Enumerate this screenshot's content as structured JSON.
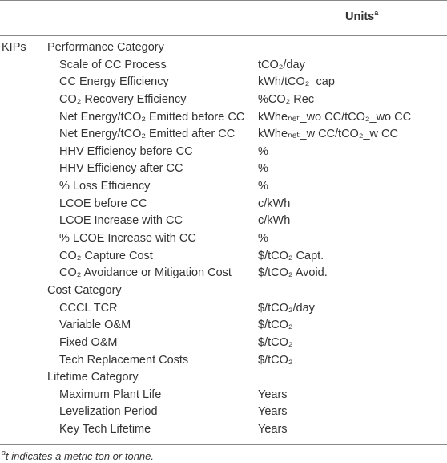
{
  "table": {
    "header": {
      "units": "Units",
      "units_note": "a"
    },
    "row_label": "KIPs",
    "sections": [
      {
        "title": "Performance Category",
        "rows": [
          [
            "Scale of CC Process",
            "tCO₂/day"
          ],
          [
            "CC Energy Efficiency",
            "kWh/tCO₂_cap"
          ],
          [
            "CO₂ Recovery Efficiency",
            "%CO₂ Rec"
          ],
          [
            "Net Energy/tCO₂ Emitted before CC",
            "kWheₙₑₜ_wo CC/tCO₂_wo CC"
          ],
          [
            "Net Energy/tCO₂ Emitted after CC",
            "kWheₙₑₜ_w CC/tCO₂_w CC"
          ],
          [
            "HHV Efficiency before CC",
            "%"
          ],
          [
            "HHV Efficiency after CC",
            "%"
          ],
          [
            "% Loss Efficiency",
            "%"
          ],
          [
            "LCOE before CC",
            "c/kWh"
          ],
          [
            "LCOE Increase with CC",
            "c/kWh"
          ],
          [
            "% LCOE Increase with CC",
            "%"
          ],
          [
            "CO₂ Capture Cost",
            "$/tCO₂ Capt."
          ],
          [
            "CO₂ Avoidance or Mitigation Cost",
            "$/tCO₂ Avoid."
          ]
        ]
      },
      {
        "title": "Cost Category",
        "rows": [
          [
            "CCCL TCR",
            "$/tCO₂/day"
          ],
          [
            "Variable O&M",
            "$/tCO₂"
          ],
          [
            "Fixed O&M",
            "$/tCO₂"
          ],
          [
            "Tech Replacement Costs",
            "$/tCO₂"
          ]
        ]
      },
      {
        "title": "Lifetime Category",
        "rows": [
          [
            "Maximum Plant Life",
            "Years"
          ],
          [
            "Levelization Period",
            "Years"
          ],
          [
            "Key Tech Lifetime",
            "Years"
          ]
        ]
      }
    ]
  },
  "footnote": {
    "mark": "a",
    "text": "t indicates a metric ton or tonne."
  }
}
